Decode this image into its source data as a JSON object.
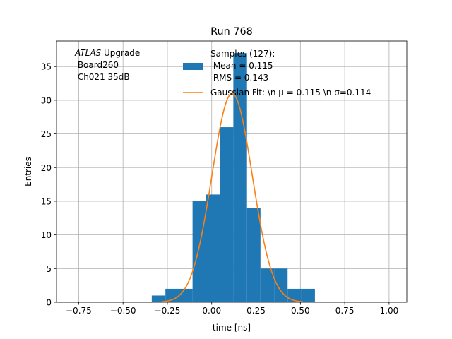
{
  "chart_data": {
    "type": "bar",
    "title": "Run 768",
    "xlabel": "time [ns]",
    "ylabel": "Entries",
    "xlim": [
      -0.875,
      1.1
    ],
    "ylim": [
      0,
      38.8
    ],
    "grid": true,
    "x_ticks": [
      "−0.75",
      "−0.50",
      "−0.25",
      "0.00",
      "0.25",
      "0.50",
      "0.75",
      "1.00"
    ],
    "x_tick_values": [
      -0.75,
      -0.5,
      -0.25,
      0.0,
      0.25,
      0.5,
      0.75,
      1.0
    ],
    "y_ticks": [
      "0",
      "5",
      "10",
      "15",
      "20",
      "25",
      "30",
      "35"
    ],
    "y_tick_values": [
      0,
      5,
      10,
      15,
      20,
      25,
      30,
      35
    ],
    "annotation": {
      "atlas": "ATLAS",
      "upgrade": " Upgrade",
      "line2": " Board260",
      "line3": " Ch021 35dB"
    },
    "histogram": {
      "name_lines": [
        "Samples (127):",
        " Mean = 0.115",
        " RMS = 0.143"
      ],
      "color": "#1f77b4",
      "bin_edges": [
        -0.338,
        -0.261,
        -0.185,
        -0.108,
        -0.032,
        0.045,
        0.122,
        0.199,
        0.275,
        0.352,
        0.428,
        0.505,
        0.582
      ],
      "counts": [
        1,
        2,
        2,
        15,
        16,
        26,
        37,
        14,
        5,
        5,
        2,
        2
      ]
    },
    "fit": {
      "name": "Gaussian Fit: \\n μ = 0.115 \\n σ=0.114",
      "color": "#ff7f0e",
      "mu": 0.115,
      "sigma": 0.114,
      "amplitude": 31,
      "x_range": [
        -0.285,
        0.515
      ]
    },
    "legend_position": "upper-center"
  }
}
